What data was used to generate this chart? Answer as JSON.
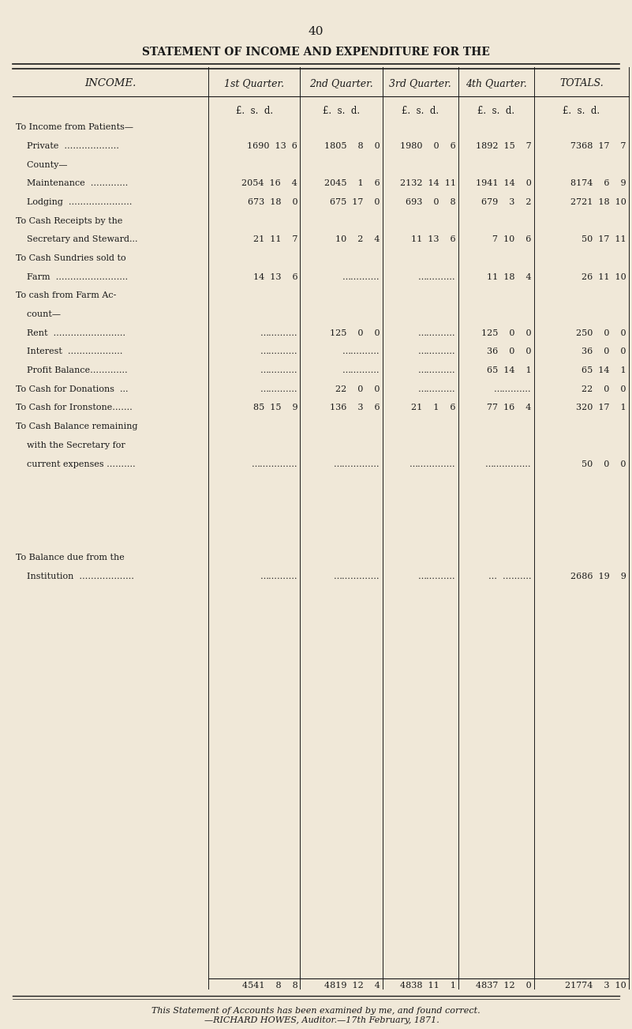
{
  "page_number": "40",
  "title": "STATEMENT OF INCOME AND EXPENDITURE FOR THE",
  "bg_color": "#f0e8d8",
  "text_color": "#1a1a1a",
  "col_headers": [
    "INCOME.",
    "1st Quarter.",
    "2nd Quarter.",
    "3rd Quarter.",
    "4th Quarter.",
    "TOTALS."
  ],
  "subheader": [
    "£.  s.  d.",
    "£.  s.  d.",
    "£.  s.  d.",
    "£.  s.  d.",
    "£.  s.  d."
  ],
  "rows": [
    {
      "label": "To Income from Patients—",
      "q1": "",
      "q2": "",
      "q3": "",
      "q4": "",
      "total": ""
    },
    {
      "label": "    Private  ……………….",
      "q1": "1690  13  6",
      "q2": "1805    8    0",
      "q3": "1980    0    6",
      "q4": "1892  15    7",
      "total": "7368  17    7"
    },
    {
      "label": "    County—",
      "q1": "",
      "q2": "",
      "q3": "",
      "q4": "",
      "total": ""
    },
    {
      "label": "    Maintenance  ………….",
      "q1": "2054  16    4",
      "q2": "2045    1    6",
      "q3": "2132  14  11",
      "q4": "1941  14    0",
      "total": "8174    6    9"
    },
    {
      "label": "    Lodging  ………………….",
      "q1": "673  18    0",
      "q2": "675  17    0",
      "q3": "693    0    8",
      "q4": "679    3    2",
      "total": "2721  18  10"
    },
    {
      "label": "To Cash Receipts by the",
      "q1": "",
      "q2": "",
      "q3": "",
      "q4": "",
      "total": ""
    },
    {
      "label": "    Secretary and Steward...",
      "q1": "21  11    7",
      "q2": "10    2    4",
      "q3": "11  13    6",
      "q4": "7  10    6",
      "total": "50  17  11"
    },
    {
      "label": "To Cash Sundries sold to",
      "q1": "",
      "q2": "",
      "q3": "",
      "q4": "",
      "total": ""
    },
    {
      "label": "    Farm  …………………….",
      "q1": "14  13    6",
      "q2": "………….",
      "q3": "………….",
      "q4": "11  18    4",
      "total": "26  11  10"
    },
    {
      "label": "To cash from Farm Ac-",
      "q1": "",
      "q2": "",
      "q3": "",
      "q4": "",
      "total": ""
    },
    {
      "label": "    count—",
      "q1": "",
      "q2": "",
      "q3": "",
      "q4": "",
      "total": ""
    },
    {
      "label": "    Rent  …………………….",
      "q1": "………….",
      "q2": "125    0    0",
      "q3": "………….",
      "q4": "125    0    0",
      "total": "250    0    0"
    },
    {
      "label": "    Interest  ……………….",
      "q1": "………….",
      "q2": "………….",
      "q3": "………….",
      "q4": "36    0    0",
      "total": "36    0    0"
    },
    {
      "label": "    Profit Balance………….",
      "q1": "………….",
      "q2": "………….",
      "q3": "………….",
      "q4": "65  14    1",
      "total": "65  14    1"
    },
    {
      "label": "To Cash for Donations  ...",
      "q1": "………….",
      "q2": "22    0    0",
      "q3": "………….",
      "q4": "………….",
      "total": "22    0    0"
    },
    {
      "label": "To Cash for Ironstone…….",
      "q1": "85  15    9",
      "q2": "136    3    6",
      "q3": "21    1    6",
      "q4": "77  16    4",
      "total": "320  17    1"
    },
    {
      "label": "To Cash Balance remaining",
      "q1": "",
      "q2": "",
      "q3": "",
      "q4": "",
      "total": ""
    },
    {
      "label": "    with the Secretary for",
      "q1": "",
      "q2": "",
      "q3": "",
      "q4": "",
      "total": ""
    },
    {
      "label": "    current expenses ……….",
      "q1": "…………….",
      "q2": "…………….",
      "q3": "…………….",
      "q4": "…………….",
      "total": "50    0    0"
    },
    {
      "label": "",
      "q1": "",
      "q2": "",
      "q3": "",
      "q4": "",
      "total": ""
    },
    {
      "label": "",
      "q1": "",
      "q2": "",
      "q3": "",
      "q4": "",
      "total": ""
    },
    {
      "label": "",
      "q1": "",
      "q2": "",
      "q3": "",
      "q4": "",
      "total": ""
    },
    {
      "label": "",
      "q1": "",
      "q2": "",
      "q3": "",
      "q4": "",
      "total": ""
    },
    {
      "label": "To Balance due from the",
      "q1": "",
      "q2": "",
      "q3": "",
      "q4": "",
      "total": ""
    },
    {
      "label": "    Institution  ……………….",
      "q1": "………….",
      "q2": "…………….",
      "q3": "………….",
      "q4": "…  ……….",
      "total": "2686  19    9"
    },
    {
      "label": "",
      "q1": "",
      "q2": "",
      "q3": "",
      "q4": "",
      "total": ""
    },
    {
      "label": "",
      "q1": "",
      "q2": "",
      "q3": "",
      "q4": "",
      "total": ""
    },
    {
      "label": "",
      "q1": "",
      "q2": "",
      "q3": "",
      "q4": "",
      "total": ""
    },
    {
      "label": "",
      "q1": "",
      "q2": "",
      "q3": "",
      "q4": "",
      "total": ""
    },
    {
      "label": "",
      "q1": "",
      "q2": "",
      "q3": "",
      "q4": "",
      "total": ""
    },
    {
      "label": "",
      "q1": "",
      "q2": "",
      "q3": "",
      "q4": "",
      "total": ""
    },
    {
      "label": "",
      "q1": "",
      "q2": "",
      "q3": "",
      "q4": "",
      "total": ""
    },
    {
      "label": "",
      "q1": "",
      "q2": "",
      "q3": "",
      "q4": "",
      "total": ""
    }
  ],
  "totals_row": {
    "q1": "4541    8    8",
    "q2": "4819  12    4",
    "q3": "4838  11    1",
    "q4": "4837  12    0",
    "total": "21774    3  10"
  },
  "footer": "This Statement of Accounts has been examined by me, and found correct.\n    —RICHARD HOWES, Auditor.—17th February, 1871."
}
